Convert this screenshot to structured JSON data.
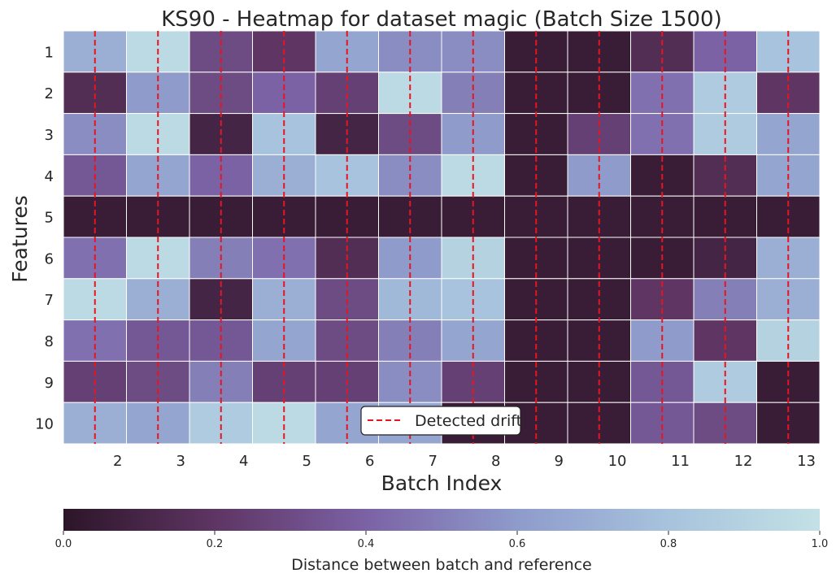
{
  "chart_data": {
    "type": "heatmap",
    "title": "KS90 - Heatmap for dataset magic (Batch Size 1500)",
    "xlabel": "Batch Index",
    "ylabel": "Features",
    "x_tick_labels": [
      "2",
      "3",
      "4",
      "5",
      "6",
      "7",
      "8",
      "9",
      "10",
      "11",
      "12",
      "13"
    ],
    "y_tick_labels": [
      "1",
      "2",
      "3",
      "4",
      "5",
      "6",
      "7",
      "8",
      "9",
      "10"
    ],
    "n_columns": 12,
    "values": [
      [
        0.7,
        0.95,
        0.3,
        0.2,
        0.65,
        0.55,
        0.55,
        0.05,
        0.05,
        0.15,
        0.4,
        0.8
      ],
      [
        0.15,
        0.6,
        0.3,
        0.4,
        0.25,
        0.95,
        0.5,
        0.05,
        0.05,
        0.45,
        0.85,
        0.2
      ],
      [
        0.55,
        0.95,
        0.1,
        0.8,
        0.1,
        0.3,
        0.6,
        0.05,
        0.25,
        0.45,
        0.85,
        0.65
      ],
      [
        0.35,
        0.65,
        0.4,
        0.7,
        0.8,
        0.55,
        0.95,
        0.05,
        0.6,
        0.05,
        0.15,
        0.65
      ],
      [
        0.05,
        0.05,
        0.05,
        0.05,
        0.05,
        0.05,
        0.05,
        0.05,
        0.05,
        0.05,
        0.05,
        0.05
      ],
      [
        0.45,
        0.95,
        0.5,
        0.45,
        0.15,
        0.6,
        0.9,
        0.05,
        0.05,
        0.05,
        0.1,
        0.7
      ],
      [
        0.95,
        0.7,
        0.1,
        0.7,
        0.3,
        0.75,
        0.8,
        0.05,
        0.05,
        0.2,
        0.5,
        0.7
      ],
      [
        0.45,
        0.35,
        0.35,
        0.65,
        0.3,
        0.5,
        0.65,
        0.05,
        0.05,
        0.6,
        0.2,
        0.9
      ],
      [
        0.25,
        0.3,
        0.5,
        0.25,
        0.25,
        0.55,
        0.25,
        0.05,
        0.05,
        0.35,
        0.85,
        0.05
      ],
      [
        0.7,
        0.65,
        0.85,
        0.95,
        0.65,
        0.65,
        0.05,
        0.05,
        0.05,
        0.35,
        0.3,
        0.05
      ]
    ],
    "drift_after_columns": [
      1,
      2,
      3,
      4,
      5,
      6,
      7,
      8,
      9,
      10,
      11,
      12
    ],
    "colormap": [
      "#2c1528",
      "#5e3563",
      "#7b62a5",
      "#8e9bcb",
      "#a7c3dd",
      "#c3e1e5"
    ],
    "drift_line_color": "#e8141e",
    "colorbar": {
      "label": "Distance between batch and reference",
      "range": [
        0.0,
        1.0
      ],
      "tick_values": [
        0.0,
        0.2,
        0.4,
        0.6,
        0.8,
        1.0
      ],
      "tick_labels": [
        "0.0",
        "0.2",
        "0.4",
        "0.6",
        "0.8",
        "1.0"
      ]
    },
    "legend": {
      "label": "Detected drift",
      "placement": "lower-center"
    }
  }
}
